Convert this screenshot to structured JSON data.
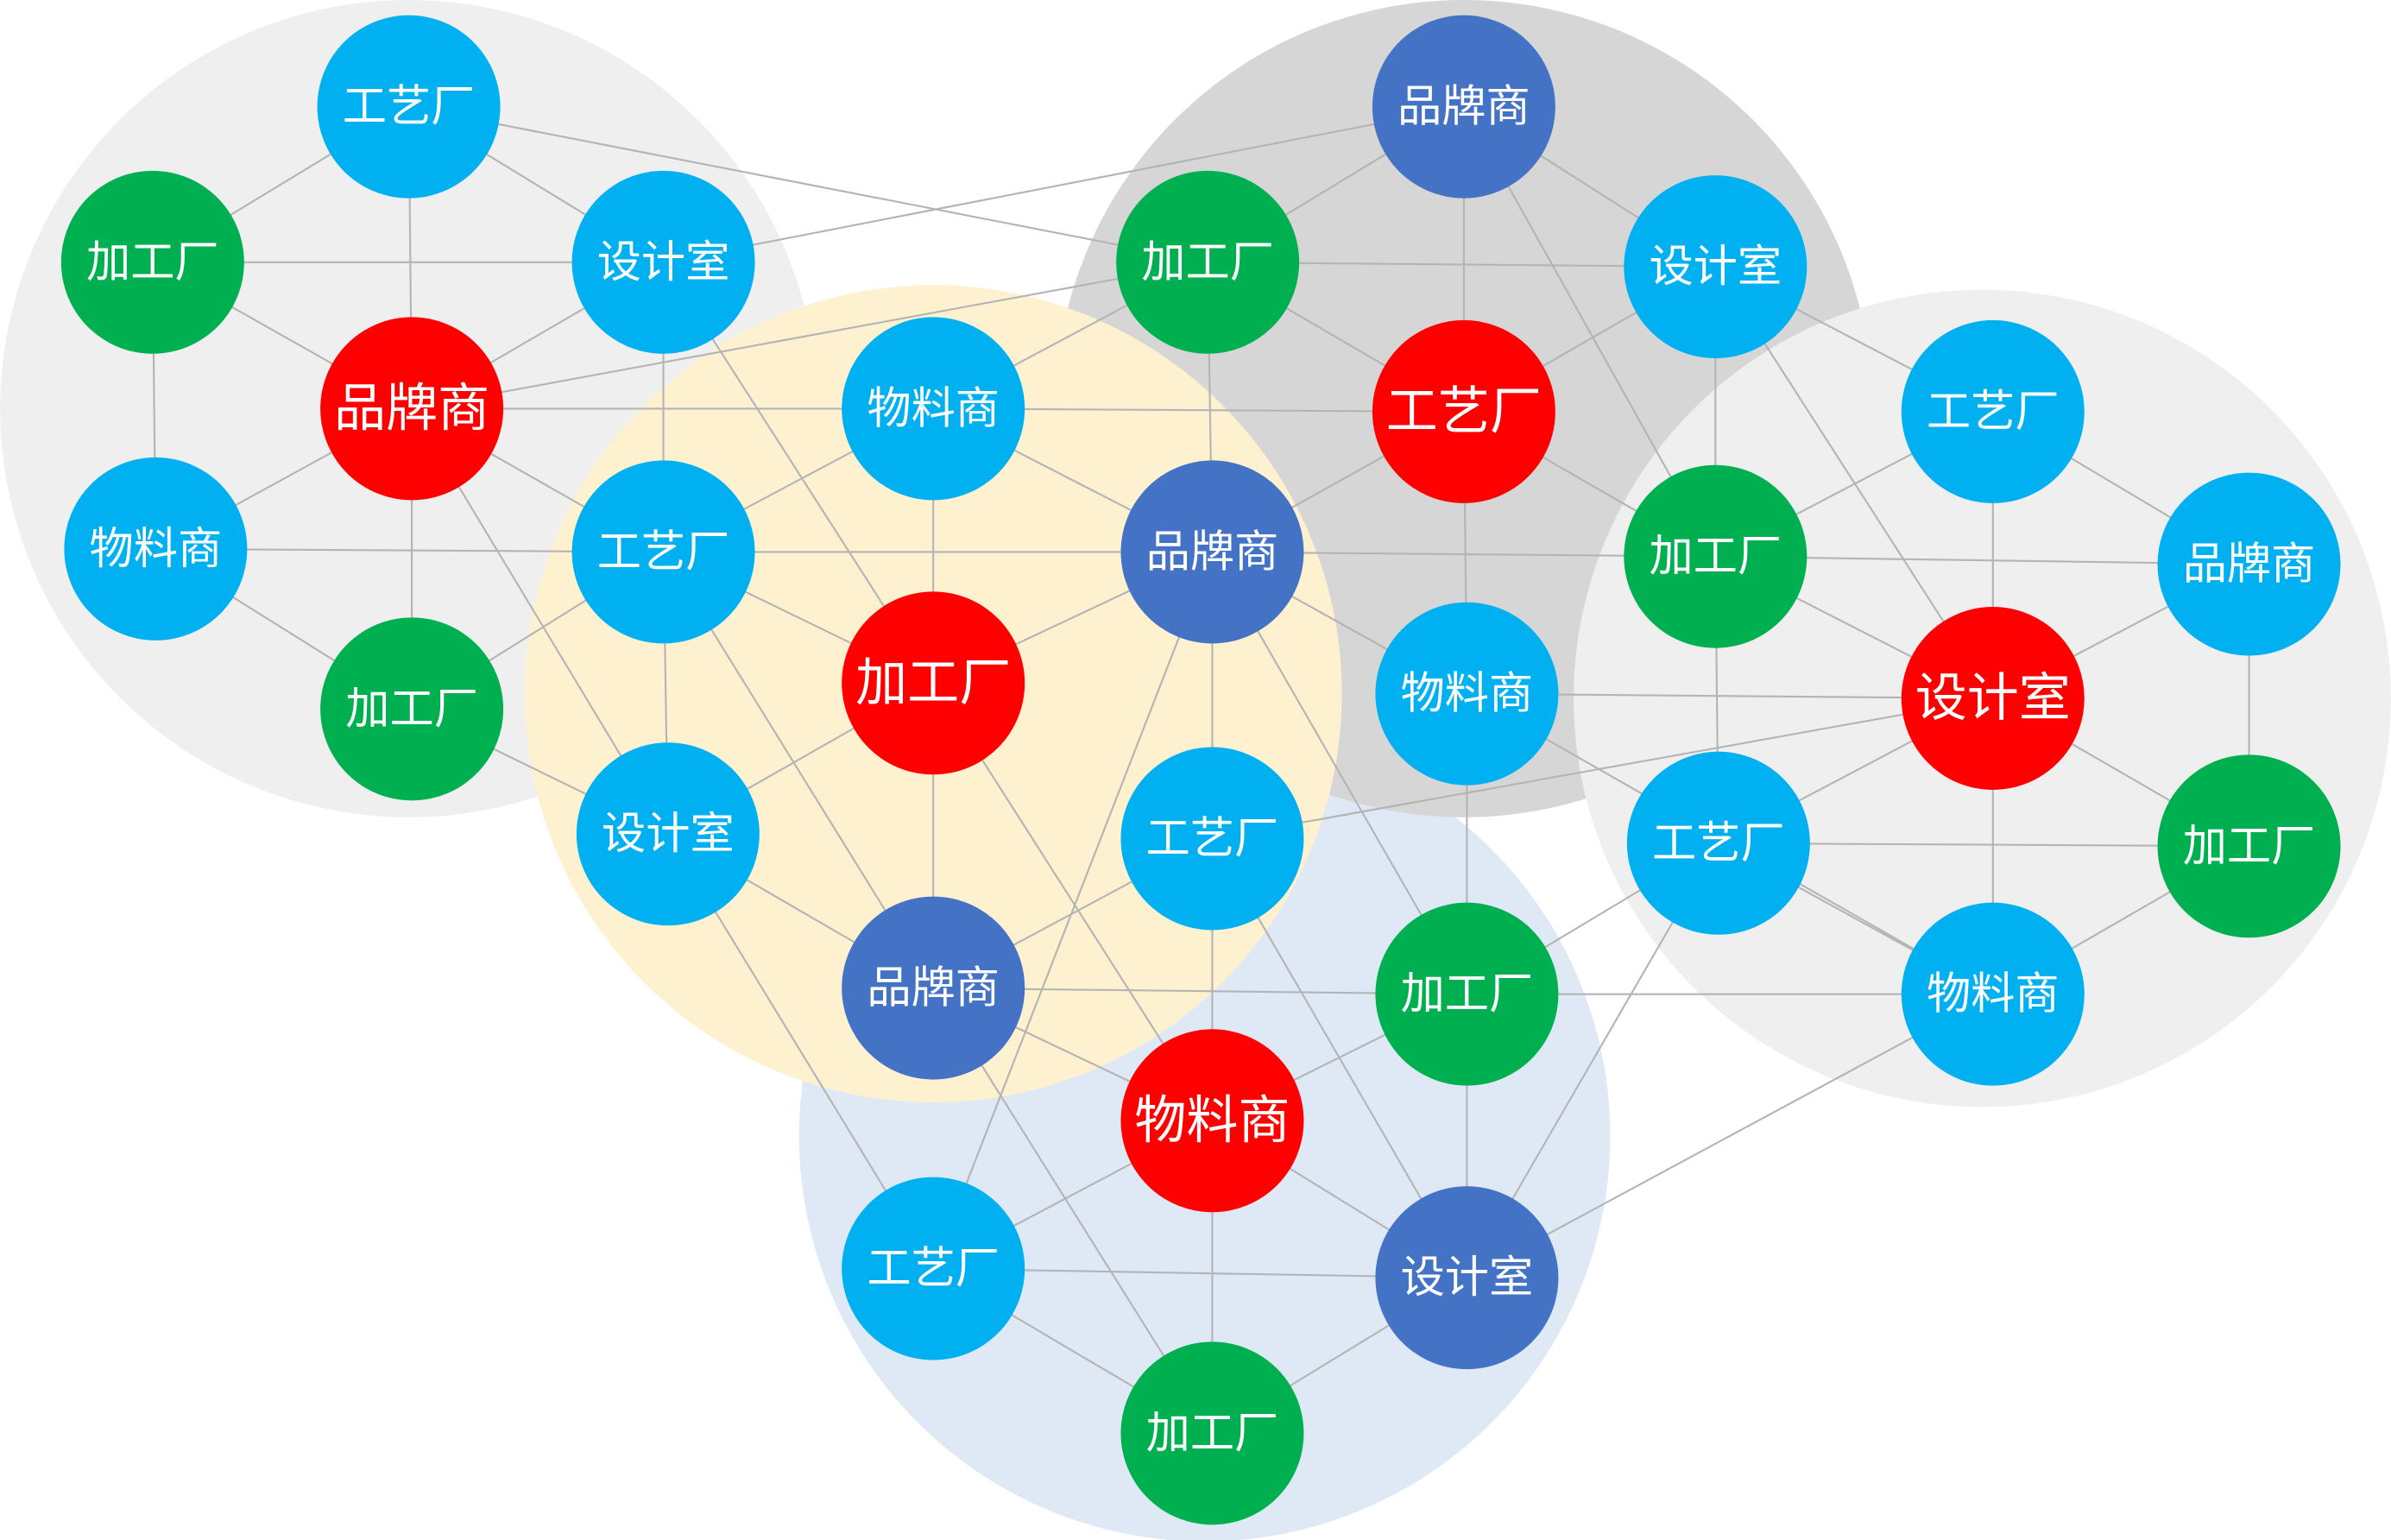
{
  "nodes": [
    "工艺厂",
    "加工厂",
    "设计室",
    "品牌商",
    "物料商",
    "加工厂",
    "物料商",
    "工艺厂",
    "加工厂",
    "品牌商",
    "设计室",
    "工艺厂",
    "品牌商",
    "品牌商",
    "加工厂",
    "设计室",
    "工艺厂",
    "物料商",
    "加工厂",
    "工艺厂",
    "品牌商",
    "设计室",
    "工艺厂",
    "加工厂",
    "物料商",
    "加工厂",
    "物料商",
    "工艺厂",
    "设计室",
    "加工厂"
  ]
}
